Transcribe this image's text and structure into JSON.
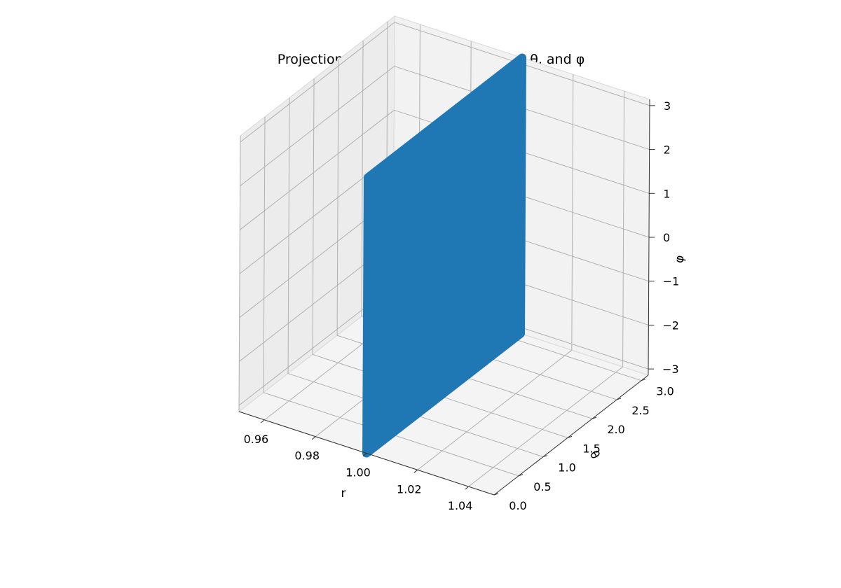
{
  "chart_data": {
    "type": "scatter",
    "projection": "3d",
    "title": "Projection of an XYZ Unit Sphere to r, θ, and φ",
    "xlabel": "r",
    "ylabel": "θ",
    "zlabel": "φ",
    "x_ticks": [
      "0.96",
      "0.98",
      "1.00",
      "1.02",
      "1.04"
    ],
    "y_ticks": [
      "0.0",
      "0.5",
      "1.0",
      "1.5",
      "2.0",
      "2.5",
      "3.0"
    ],
    "z_ticks": [
      "−3",
      "−2",
      "−1",
      "0",
      "1",
      "2",
      "3"
    ],
    "xlim": [
      0.95,
      1.05
    ],
    "ylim": [
      0,
      3.1416
    ],
    "zlim": [
      -3.1416,
      3.1416
    ],
    "grid": true,
    "series": [
      {
        "color": "#1f77b4",
        "points_description_free": true,
        "r_value": 1.0,
        "theta_range": [
          0,
          3.1416
        ],
        "phi_range": [
          -3.1416,
          3.1416
        ]
      }
    ]
  }
}
